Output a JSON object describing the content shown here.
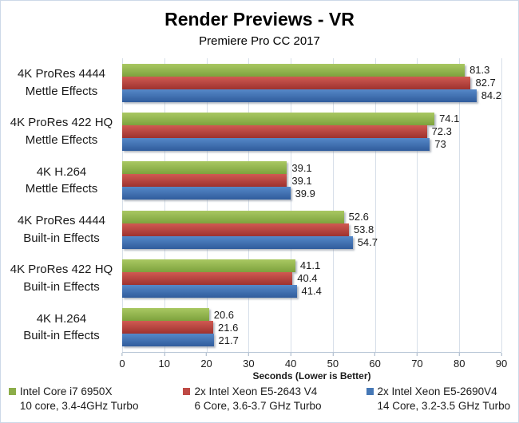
{
  "title": "Render Previews - VR",
  "subtitle": "Premiere Pro CC 2017",
  "chart_data": {
    "type": "bar",
    "orientation": "horizontal",
    "title": "Render Previews - VR",
    "subtitle": "Premiere Pro CC 2017",
    "xlabel": "Seconds (Lower is Better)",
    "xlim": [
      0,
      90
    ],
    "xticks": [
      0,
      10,
      20,
      30,
      40,
      50,
      60,
      70,
      80,
      90
    ],
    "grid": true,
    "legend_position": "bottom",
    "categories": [
      {
        "line1": "4K ProRes 4444",
        "line2": "Mettle Effects"
      },
      {
        "line1": "4K ProRes 422 HQ",
        "line2": "Mettle Effects"
      },
      {
        "line1": "4K H.264",
        "line2": "Mettle Effects"
      },
      {
        "line1": "4K ProRes 4444",
        "line2": "Built-in Effects"
      },
      {
        "line1": "4K ProRes 422 HQ",
        "line2": "Built-in Effects"
      },
      {
        "line1": "4K H.264",
        "line2": "Built-in Effects"
      }
    ],
    "series": [
      {
        "name": "Intel Core i7 6950X",
        "spec": "10 core, 3.4-4GHz Turbo",
        "values": [
          81.3,
          74.1,
          39.1,
          52.6,
          41.1,
          20.6
        ],
        "labels": [
          "81.3",
          "74.1",
          "39.1",
          "52.6",
          "41.1",
          "20.6"
        ],
        "color_top": "#a9c862",
        "color_bottom": "#7da23d",
        "legend_color": "#8cad49"
      },
      {
        "name": "2x Intel Xeon E5-2643 V4",
        "spec": "6 Core, 3.6-3.7 GHz Turbo",
        "values": [
          82.7,
          72.3,
          39.1,
          53.8,
          40.4,
          21.6
        ],
        "labels": [
          "82.7",
          "72.3",
          "39.1",
          "53.8",
          "40.4",
          "21.6"
        ],
        "color_top": "#d05a52",
        "color_bottom": "#9e322f",
        "legend_color": "#bf4a45"
      },
      {
        "name": "2x Intel Xeon E5-2690V4",
        "spec": "14 Core, 3.2-3.5 GHz Turbo",
        "values": [
          84.2,
          73,
          39.9,
          54.7,
          41.4,
          21.7
        ],
        "labels": [
          "84.2",
          "73",
          "39.9",
          "54.7",
          "41.4",
          "21.7"
        ],
        "color_top": "#5588c8",
        "color_bottom": "#305c9c",
        "legend_color": "#4678b6"
      }
    ]
  }
}
